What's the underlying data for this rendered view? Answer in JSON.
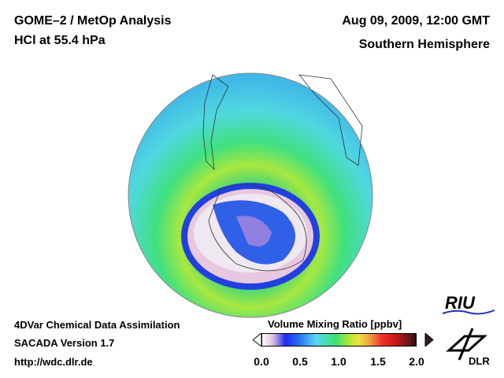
{
  "header": {
    "title": "GOME–2 / MetOp Analysis",
    "subtitle": "HCl at 55.4 hPa",
    "date": "Aug 09, 2009, 12:00 GMT",
    "region": "Southern Hemisphere"
  },
  "footer": {
    "line1": "4DVar Chemical Data Assimilation",
    "line2": "SACADA Version 1.7",
    "url": "http://wdc.dlr.de"
  },
  "colorbar": {
    "title": "Volume Mixing Ratio [ppbv]",
    "ticks": [
      "0.0",
      "0.5",
      "1.0",
      "1.5",
      "2.0"
    ],
    "range": [
      0.0,
      2.0
    ]
  },
  "logos": {
    "riu": "RIU",
    "dlr": "DLR"
  }
}
